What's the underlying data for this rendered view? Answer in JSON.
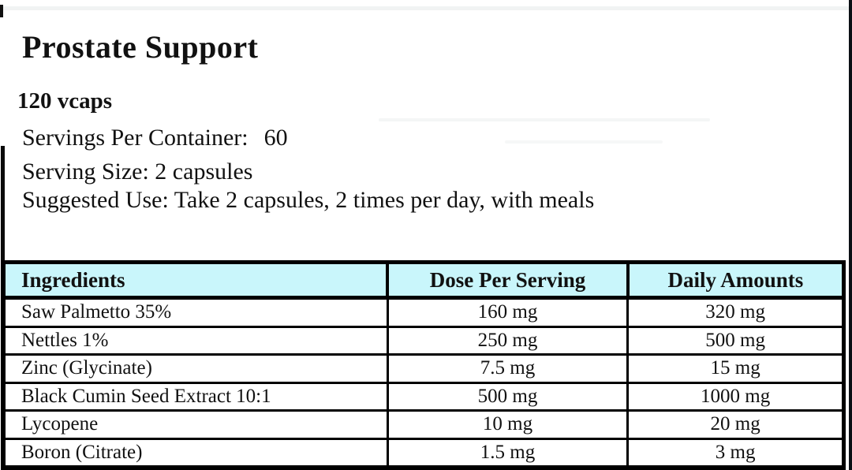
{
  "label": {
    "title": "Prostate Support",
    "quantity": "120 vcaps",
    "servings_per_container_label": "Servings Per Container:",
    "servings_per_container_value": "60",
    "serving_size": "Serving Size: 2 capsules",
    "suggested_use": "Suggested Use: Take 2 capsules, 2 times per day, with meals"
  },
  "table": {
    "header_bg": "#c9f6fb",
    "headers": {
      "ingredients": "Ingredients",
      "dose": "Dose Per Serving",
      "daily": "Daily Amounts"
    },
    "rows": [
      {
        "name": "Saw Palmetto 35%",
        "dose": "160 mg",
        "daily": "320 mg"
      },
      {
        "name": "Nettles 1%",
        "dose": "250 mg",
        "daily": "500 mg"
      },
      {
        "name": "Zinc (Glycinate)",
        "dose": "7.5 mg",
        "daily": "15 mg"
      },
      {
        "name": "Black Cumin Seed Extract 10:1",
        "dose": "500 mg",
        "daily": "1000 mg"
      },
      {
        "name": "Lycopene",
        "dose": "10 mg",
        "daily": "20 mg"
      },
      {
        "name": "Boron (Citrate)",
        "dose": "1.5 mg",
        "daily": "3 mg"
      }
    ]
  }
}
